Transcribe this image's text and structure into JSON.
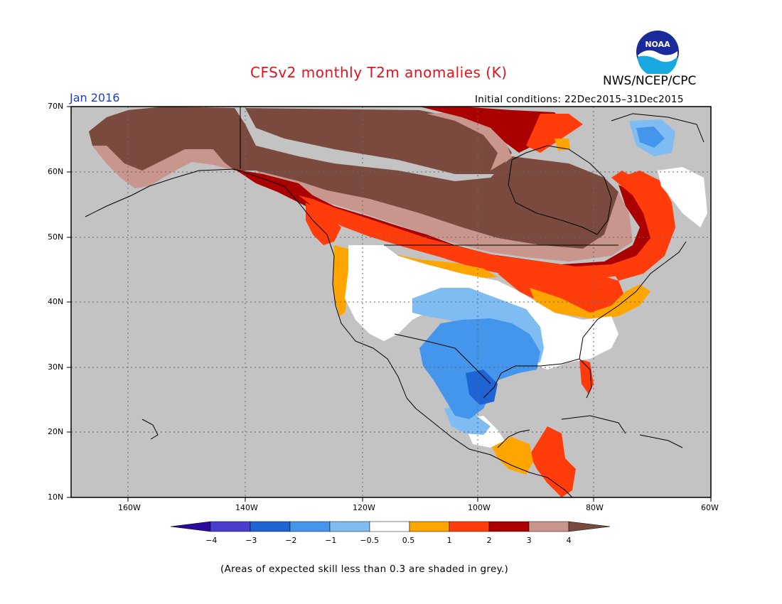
{
  "title": "CFSv2 monthly T2m anomalies (K)",
  "month": "Jan 2016",
  "initial_conditions": "Initial conditions: 22Dec2015–31Dec2015",
  "agency": "NWS/NCEP/CPC",
  "logo_text": "NOAA",
  "footnote": "(Areas of expected skill less than 0.3 are shaded in grey.)",
  "lat_labels": [
    "70N",
    "60N",
    "50N",
    "40N",
    "30N",
    "20N",
    "10N"
  ],
  "lon_labels": [
    "160W",
    "140W",
    "120W",
    "100W",
    "80W",
    "60W"
  ],
  "colorbar": {
    "labels": [
      "−4",
      "−3",
      "−2",
      "−1",
      "−0.5",
      "0.5",
      "1",
      "2",
      "3",
      "4"
    ],
    "colors": [
      "#2a0a9a",
      "#4a3ccc",
      "#1e64d2",
      "#4496ec",
      "#7ebcf2",
      "#ffffff",
      "#ffa500",
      "#ff3c0a",
      "#aa0000",
      "#c8968c",
      "#7a4a3e"
    ]
  },
  "colors": {
    "no_skill": "#c3c3c3",
    "map_border": "#000000",
    "title": "#e8101a",
    "month": "#1a3cd4"
  }
}
